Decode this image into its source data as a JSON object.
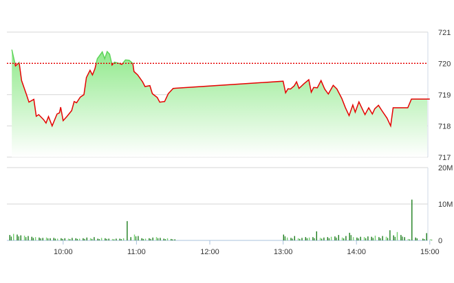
{
  "chart_data": [
    {
      "type": "line",
      "panel": "price",
      "y_ticks": [
        "721",
        "720",
        "719",
        "718",
        "717"
      ],
      "ylim": [
        717,
        721
      ],
      "reference_line": 720,
      "grid": true,
      "colors": {
        "line": "#e60000",
        "line_above_reference": "#5ed45a",
        "fill_top": "#8fe98a",
        "reference": "#e60000"
      },
      "series": [
        {
          "x": [
            "09:18",
            "09:21",
            "09:24",
            "09:26",
            "09:30",
            "09:32",
            "09:36",
            "09:38",
            "09:40",
            "09:44",
            "09:46",
            "09:48",
            "09:51",
            "09:55",
            "09:57",
            "09:58",
            "10:00",
            "10:03",
            "10:07",
            "10:09",
            "10:11",
            "10:14",
            "10:17",
            "10:19",
            "10:22",
            "10:24",
            "10:26",
            "10:28",
            "10:32",
            "10:34",
            "10:36",
            "10:38",
            "10:40",
            "10:42",
            "10:46",
            "10:48",
            "10:51",
            "10:54",
            "10:57",
            "10:58",
            "11:01",
            "11:05",
            "11:07",
            "11:11",
            "11:13",
            "11:17",
            "11:19",
            "11:23",
            "11:26",
            "11:30",
            "13:00",
            "13:02",
            "13:04",
            "13:06",
            "13:09",
            "13:11",
            "13:13",
            "13:17",
            "13:21",
            "13:23",
            "13:25",
            "13:28",
            "13:31",
            "13:34",
            "13:37",
            "13:41",
            "13:44",
            "13:48",
            "13:51",
            "13:54",
            "13:57",
            "13:59",
            "14:02",
            "14:07",
            "14:10",
            "14:13",
            "14:15",
            "14:18",
            "14:21",
            "14:25",
            "14:28",
            "14:30",
            "14:42",
            "14:45",
            "15:00"
          ],
          "y": [
            720.44,
            719.92,
            720.03,
            719.45,
            719.0,
            718.76,
            718.85,
            718.31,
            718.36,
            718.2,
            718.09,
            718.3,
            718.0,
            718.38,
            718.42,
            718.6,
            718.17,
            718.3,
            718.49,
            718.78,
            718.74,
            718.92,
            719.0,
            719.55,
            719.78,
            719.63,
            719.83,
            720.15,
            720.37,
            720.15,
            720.38,
            720.3,
            719.95,
            720.04,
            720.0,
            719.97,
            720.11,
            720.1,
            720.0,
            719.74,
            719.63,
            719.41,
            719.26,
            719.29,
            719.03,
            718.91,
            718.76,
            718.78,
            719.03,
            719.2,
            719.43,
            719.06,
            719.19,
            719.18,
            719.28,
            719.41,
            719.2,
            719.35,
            719.48,
            719.08,
            719.23,
            719.22,
            719.45,
            719.18,
            719.02,
            719.3,
            719.18,
            718.88,
            718.58,
            718.33,
            718.67,
            718.44,
            718.77,
            718.36,
            718.58,
            718.38,
            718.55,
            718.66,
            718.48,
            718.25,
            718.0,
            718.58,
            718.58,
            718.86,
            718.86
          ]
        }
      ]
    },
    {
      "type": "bar",
      "panel": "volume",
      "y_ticks": [
        "20M",
        "10M",
        "0"
      ],
      "ylim": [
        0,
        20
      ],
      "unit": "M",
      "x_ticks": [
        "10:00",
        "11:00",
        "12:00",
        "13:00",
        "14:00",
        "15:00"
      ],
      "colors": {
        "bar_dark": "#1b7d1b",
        "bar_light": "#6fcf6a"
      },
      "morning": {
        "start": "09:16",
        "step_minutes": 3,
        "values": [
          1.5,
          1.8,
          1.6,
          1.4,
          1.3,
          1.2,
          1.0,
          0.9,
          0.8,
          0.7,
          0.8,
          0.6,
          0.7,
          0.5,
          0.6,
          0.6,
          0.5,
          0.7,
          0.6,
          0.5,
          0.6,
          0.8,
          0.6,
          0.9,
          0.5,
          0.7,
          0.6,
          0.5,
          0.4,
          0.5,
          0.5,
          0.6,
          5.3,
          0.9,
          1.6,
          1.2,
          0.6,
          0.5,
          0.6,
          0.8,
          0.9,
          0.7,
          0.5,
          0.6,
          0.4,
          0.3
        ]
      },
      "afternoon": {
        "start": "13:00",
        "step_minutes": 3,
        "values": [
          1.6,
          0.8,
          0.7,
          1.2,
          0.6,
          0.7,
          0.9,
          0.8,
          0.9,
          2.5,
          0.7,
          0.8,
          0.9,
          1.0,
          1.1,
          1.5,
          0.8,
          1.2,
          2.1,
          0.9,
          0.8,
          1.0,
          0.9,
          1.1,
          1.0,
          1.3,
          0.9,
          1.2,
          1.0,
          2.8,
          1.4,
          2.3,
          1.5,
          0.9,
          0.4,
          11.2,
          0.8,
          0,
          0.5,
          2.0,
          0.3
        ]
      }
    }
  ]
}
